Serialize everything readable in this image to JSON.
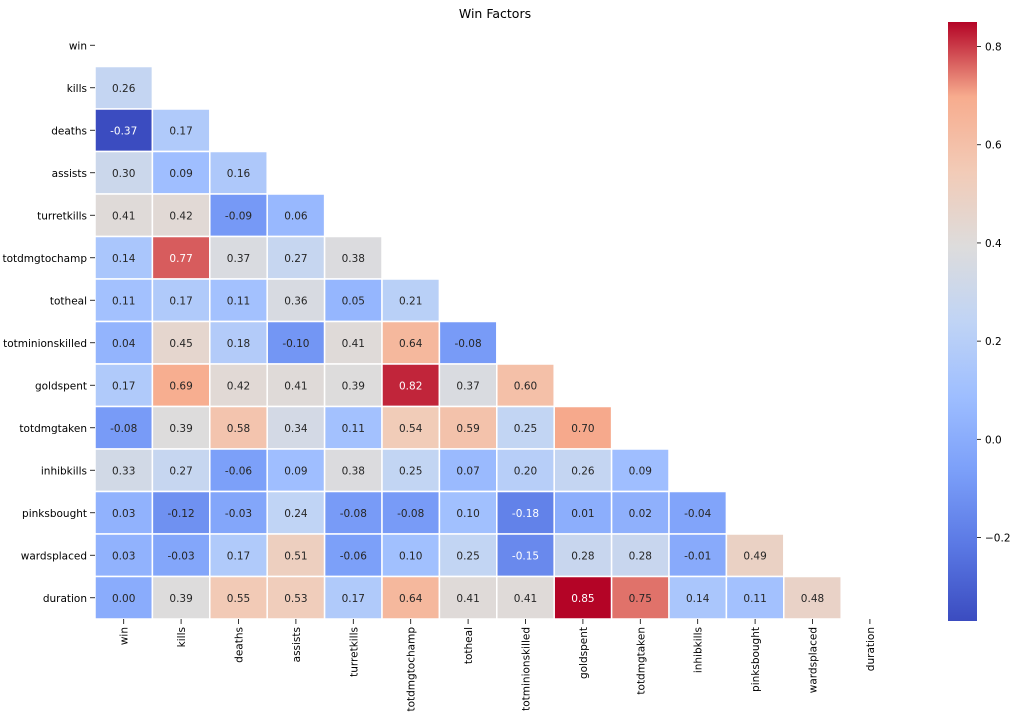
{
  "chart_data": {
    "type": "heatmap",
    "title": "Win Factors",
    "variables": [
      "win",
      "kills",
      "deaths",
      "assists",
      "turretkills",
      "totdmgtochamp",
      "totheal",
      "totminionskilled",
      "goldspent",
      "totdmgtaken",
      "inhibkills",
      "pinksbought",
      "wardsplaced",
      "duration"
    ],
    "mask": "upper-triangle-and-diagonal",
    "matrix": [
      [],
      [
        0.26
      ],
      [
        -0.37,
        0.17
      ],
      [
        0.3,
        0.09,
        0.16
      ],
      [
        0.41,
        0.42,
        -0.09,
        0.06
      ],
      [
        0.14,
        0.77,
        0.37,
        0.27,
        0.38
      ],
      [
        0.11,
        0.17,
        0.11,
        0.36,
        0.05,
        0.21
      ],
      [
        0.04,
        0.45,
        0.18,
        -0.1,
        0.41,
        0.64,
        -0.08
      ],
      [
        0.17,
        0.69,
        0.42,
        0.41,
        0.39,
        0.82,
        0.37,
        0.6
      ],
      [
        -0.08,
        0.39,
        0.58,
        0.34,
        0.11,
        0.54,
        0.59,
        0.25,
        0.7
      ],
      [
        0.33,
        0.27,
        -0.06,
        0.09,
        0.38,
        0.25,
        0.07,
        0.2,
        0.26,
        0.09
      ],
      [
        0.03,
        -0.12,
        -0.03,
        0.24,
        -0.08,
        -0.08,
        0.1,
        -0.18,
        0.01,
        0.02,
        -0.04
      ],
      [
        0.03,
        -0.03,
        0.17,
        0.51,
        -0.06,
        0.1,
        0.25,
        -0.15,
        0.28,
        0.28,
        -0.01,
        0.49
      ],
      [
        0.0,
        0.39,
        0.55,
        0.53,
        0.17,
        0.64,
        0.41,
        0.41,
        0.85,
        0.75,
        0.14,
        0.11,
        0.48
      ]
    ],
    "value_format": "0.00",
    "colormap": "coolwarm",
    "colorbar": {
      "vmin": -0.37,
      "vmax": 0.85,
      "ticks": [
        -0.2,
        0.0,
        0.2,
        0.4,
        0.6,
        0.8
      ],
      "tick_labels": [
        "−0.2",
        "0.0",
        "0.2",
        "0.4",
        "0.6",
        "0.8"
      ],
      "placement": "right"
    },
    "grid": "white cell borders"
  }
}
